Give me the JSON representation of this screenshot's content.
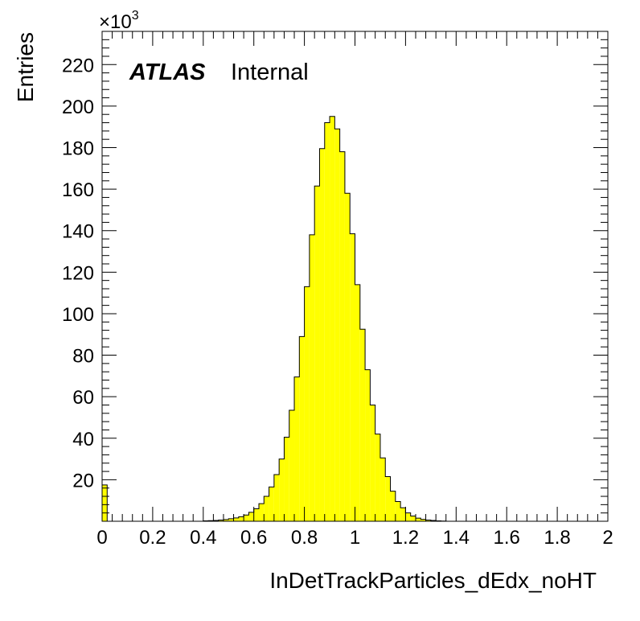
{
  "chart_data": {
    "type": "bar",
    "histogram": true,
    "xlabel": "InDetTrackParticles_dEdx_noHT",
    "ylabel": "Entries",
    "y_multiplier": "×10",
    "y_exponent": "3",
    "experiment_label": "ATLAS",
    "status_label": "Internal",
    "fill_color": "#ffff00",
    "line_color": "#000000",
    "xlim": [
      0,
      2
    ],
    "ylim": [
      0,
      236
    ],
    "bin_width": 0.02,
    "x_ticks": [
      "0",
      "0.2",
      "0.4",
      "0.6",
      "0.8",
      "1",
      "1.2",
      "1.4",
      "1.6",
      "1.8",
      "2"
    ],
    "y_ticks": [
      "20",
      "40",
      "60",
      "80",
      "100",
      "120",
      "140",
      "160",
      "180",
      "200",
      "220"
    ],
    "values": [
      17.5,
      0,
      0,
      0,
      0,
      0,
      0,
      0,
      0,
      0,
      0,
      0,
      0,
      0,
      0,
      0,
      0,
      0,
      0,
      0,
      0.2,
      0.3,
      0.4,
      0.6,
      0.8,
      1.2,
      1.6,
      2.2,
      3,
      4.3,
      6,
      8.5,
      12,
      16.5,
      22.5,
      30,
      40.5,
      53.5,
      69.5,
      89,
      113,
      138,
      161.5,
      179.5,
      192,
      195,
      189,
      178,
      158,
      138.5,
      114,
      92.5,
      73,
      56,
      42,
      30.5,
      21.5,
      14.5,
      9.5,
      6.5,
      4,
      2.5,
      1.5,
      0.9,
      0.6,
      0.4,
      0.2,
      0.1,
      0,
      0,
      0,
      0,
      0,
      0,
      0,
      0,
      0,
      0,
      0,
      0,
      0,
      0,
      0,
      0,
      0,
      0,
      0,
      0,
      0,
      0,
      0,
      0,
      0,
      0,
      0,
      0,
      0,
      0,
      0,
      0
    ]
  }
}
